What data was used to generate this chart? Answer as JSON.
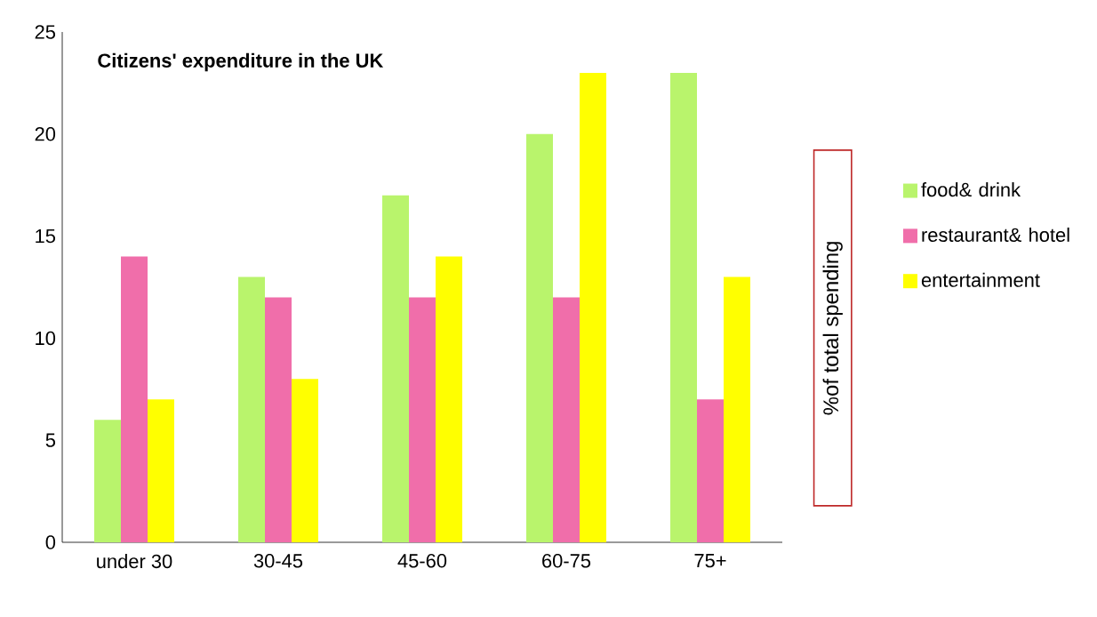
{
  "chart_data": {
    "type": "bar",
    "title": "Citizens' expenditure in the UK",
    "ylabel": "%of total spending",
    "categories": [
      "under 30",
      "30-45",
      "45-60",
      "60-75",
      "75+"
    ],
    "series": [
      {
        "name": "food& drink",
        "color": "#b9f46c",
        "values": [
          6,
          13,
          17,
          20,
          23
        ]
      },
      {
        "name": "restaurant& hotel",
        "color": "#f06eaa",
        "values": [
          14,
          12,
          12,
          12,
          7
        ]
      },
      {
        "name": "entertainment",
        "color": "#ffff00",
        "values": [
          7,
          8,
          14,
          23,
          13
        ]
      }
    ],
    "ylim": [
      0,
      25
    ],
    "yticks": [
      0,
      5,
      10,
      15,
      20,
      25
    ],
    "grid": false,
    "legend": "right"
  }
}
